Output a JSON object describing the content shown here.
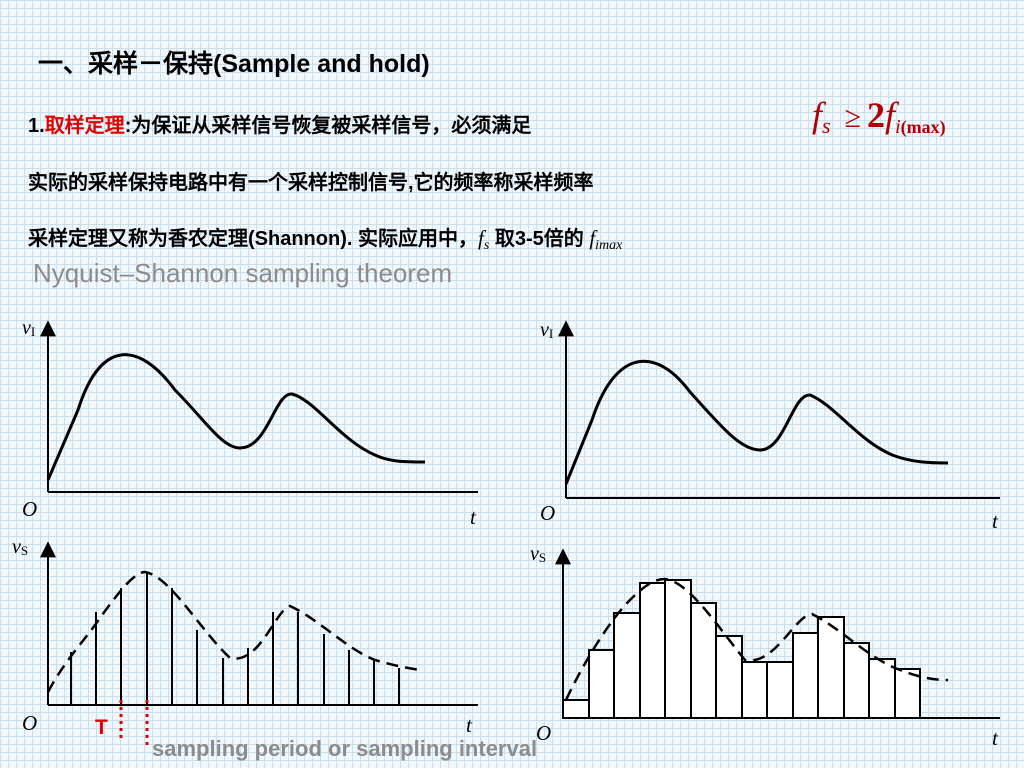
{
  "title": {
    "cn": "一、采样－保持",
    "en": "(Sample and hold)"
  },
  "line1": {
    "num": "1.",
    "keyword": "取样定理",
    "rest": ":为保证从采样信号恢复被采样信号，必须满足",
    "formula": {
      "f1": "f",
      "sub1": "s",
      "op": "≥",
      "coef": "2",
      "f2": "f",
      "sub2a": "i",
      "sub2b": "(max)"
    }
  },
  "line2": "实际的采样保持电路中有一个采样控制信号,它的频率称采样频率",
  "line3": {
    "a": "采样定理又称为香农定理(Shannon). 实际应用中，",
    "f1": "f",
    "sub1": "s",
    "b": " 取3-5倍的 ",
    "f2": "f",
    "sub2": "imax"
  },
  "subtitle": "Nyquist–Shannon sampling theorem",
  "diagram_labels": {
    "vi_v": "v",
    "vi_sub": "I",
    "vs_v": "v",
    "vs_sub": "S",
    "origin": "O",
    "t": "t"
  },
  "period_label": "T",
  "caption": "sampling period or sampling interval",
  "colors": {
    "accent_red": "#e00000",
    "caption_gray": "#8c8c8c",
    "grid_blue": "#c9deef"
  }
}
